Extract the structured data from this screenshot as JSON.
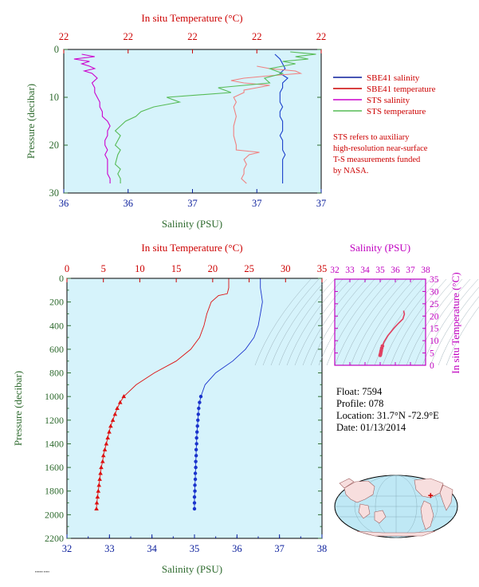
{
  "chart_data": [
    {
      "type": "line",
      "name": "upper-near-surface-profile",
      "top_axis": {
        "label": "In situ Temperature (°C)",
        "ticks": [
          "22",
          "22",
          "22",
          "22",
          "22"
        ],
        "color": "#cc0000"
      },
      "bottom_axis": {
        "label": "Salinity (PSU)",
        "ticks": [
          "36",
          "36",
          "37",
          "37",
          "37"
        ],
        "range": [
          36.0,
          37.0
        ],
        "color": "#0b1f9c"
      },
      "y_axis": {
        "label": "Pressure (decibar)",
        "ticks": [
          "0",
          "10",
          "20",
          "30"
        ],
        "range": [
          0,
          30
        ],
        "inverted": true,
        "color": "#2f6b2f"
      },
      "temp_range": [
        21.5,
        22.5
      ],
      "legend": {
        "placement": "right",
        "items": [
          {
            "label": "SBE41 salinity",
            "color": "#0b1f9c"
          },
          {
            "label": "SBE41 temperature",
            "color": "#cc0000"
          },
          {
            "label": "STS salinity",
            "color": "#cc00cc"
          },
          {
            "label": "STS temperature",
            "color": "#55bb55"
          }
        ]
      },
      "note": [
        "STS refers to auxiliary",
        "high-resolution near-surface",
        "T-S measurements funded",
        "by NASA."
      ],
      "series": [
        {
          "name": "SBE41 salinity",
          "color": "#1a3fcc",
          "style": "line",
          "points": [
            [
              36.82,
              1
            ],
            [
              36.84,
              2
            ],
            [
              36.85,
              3
            ],
            [
              36.86,
              4
            ],
            [
              36.84,
              5
            ],
            [
              36.87,
              6
            ],
            [
              36.85,
              7
            ],
            [
              36.85,
              8
            ],
            [
              36.84,
              9
            ],
            [
              36.84,
              10
            ],
            [
              36.84,
              11
            ],
            [
              36.85,
              12
            ],
            [
              36.84,
              13
            ],
            [
              36.84,
              14
            ],
            [
              36.85,
              15
            ],
            [
              36.85,
              16
            ],
            [
              36.85,
              17
            ],
            [
              36.84,
              18
            ],
            [
              36.85,
              19
            ],
            [
              36.85,
              20
            ],
            [
              36.85,
              21
            ],
            [
              36.86,
              22
            ],
            [
              36.85,
              23
            ],
            [
              36.85,
              24
            ],
            [
              36.85,
              25
            ],
            [
              36.85,
              26
            ],
            [
              36.85,
              27
            ],
            [
              36.85,
              28
            ]
          ]
        },
        {
          "name": "SBE41 temperature",
          "color": "#f08080",
          "style": "line",
          "points": [
            [
              22.25,
              3.5
            ],
            [
              22.3,
              4
            ],
            [
              22.4,
              4.5
            ],
            [
              22.42,
              5
            ],
            [
              22.3,
              5.5
            ],
            [
              22.2,
              6
            ],
            [
              22.15,
              6.5
            ],
            [
              22.2,
              7
            ],
            [
              22.3,
              7.5
            ],
            [
              22.25,
              8
            ],
            [
              22.2,
              8.5
            ],
            [
              22.2,
              9
            ],
            [
              22.18,
              9.5
            ],
            [
              22.16,
              10
            ],
            [
              22.17,
              11
            ],
            [
              22.16,
              12
            ],
            [
              22.17,
              14
            ],
            [
              22.16,
              16
            ],
            [
              22.16,
              18
            ],
            [
              22.17,
              20
            ],
            [
              22.17,
              21
            ],
            [
              22.26,
              21.5
            ],
            [
              22.22,
              22
            ],
            [
              22.2,
              23
            ],
            [
              22.21,
              24
            ],
            [
              22.2,
              25
            ],
            [
              22.2,
              26
            ],
            [
              22.19,
              27
            ],
            [
              22.21,
              28
            ]
          ]
        },
        {
          "name": "STS salinity",
          "color": "#cc00cc",
          "style": "line",
          "points": [
            [
              36.07,
              1
            ],
            [
              36.12,
              1.5
            ],
            [
              36.04,
              2
            ],
            [
              36.1,
              2.5
            ],
            [
              36.07,
              3
            ],
            [
              36.1,
              3.5
            ],
            [
              36.12,
              4
            ],
            [
              36.08,
              4.5
            ],
            [
              36.11,
              5
            ],
            [
              36.13,
              6
            ],
            [
              36.11,
              7
            ],
            [
              36.12,
              8
            ],
            [
              36.12,
              9
            ],
            [
              36.13,
              10
            ],
            [
              36.14,
              11
            ],
            [
              36.14,
              12
            ],
            [
              36.15,
              13
            ],
            [
              36.15,
              14
            ],
            [
              36.17,
              15
            ],
            [
              36.18,
              16
            ],
            [
              36.17,
              17
            ],
            [
              36.17,
              18
            ],
            [
              36.16,
              19
            ],
            [
              36.16,
              20
            ],
            [
              36.17,
              21
            ],
            [
              36.16,
              22
            ],
            [
              36.17,
              23
            ],
            [
              36.17,
              24
            ],
            [
              36.17,
              25
            ],
            [
              36.17,
              26
            ],
            [
              36.18,
              27
            ],
            [
              36.18,
              28
            ]
          ]
        },
        {
          "name": "STS temperature",
          "color": "#55bb55",
          "style": "line",
          "points": [
            [
              22.38,
              0.5
            ],
            [
              22.48,
              1
            ],
            [
              22.4,
              1.5
            ],
            [
              22.45,
              2
            ],
            [
              22.35,
              2.5
            ],
            [
              22.4,
              3
            ],
            [
              22.3,
              4
            ],
            [
              22.35,
              5
            ],
            [
              22.28,
              6
            ],
            [
              22.3,
              7
            ],
            [
              22.1,
              8
            ],
            [
              22.15,
              9
            ],
            [
              21.9,
              10
            ],
            [
              21.95,
              11
            ],
            [
              21.85,
              12
            ],
            [
              21.8,
              13
            ],
            [
              21.78,
              14
            ],
            [
              21.74,
              15
            ],
            [
              21.72,
              16
            ],
            [
              21.7,
              17
            ],
            [
              21.72,
              18
            ],
            [
              21.7,
              20
            ],
            [
              21.72,
              21
            ],
            [
              21.71,
              22
            ],
            [
              21.7,
              24
            ],
            [
              21.72,
              25
            ],
            [
              21.71,
              26
            ],
            [
              21.72,
              27
            ],
            [
              21.72,
              28
            ]
          ]
        }
      ]
    },
    {
      "type": "line",
      "name": "full-depth-profile",
      "top_axis": {
        "label": "In situ Temperature (°C)",
        "ticks": [
          "0",
          "5",
          "10",
          "15",
          "20",
          "25",
          "30",
          "35"
        ],
        "range": [
          0,
          35
        ],
        "color": "#cc0000"
      },
      "bottom_axis": {
        "label": "Salinity (PSU)",
        "ticks": [
          "32",
          "33",
          "34",
          "35",
          "36",
          "37",
          "38"
        ],
        "range": [
          32,
          38
        ],
        "color": "#0b1f9c"
      },
      "y_axis": {
        "label": "Pressure (decibar)",
        "ticks": [
          "0",
          "200",
          "400",
          "600",
          "800",
          "1000",
          "1200",
          "1400",
          "1600",
          "1800",
          "2000",
          "2200"
        ],
        "range": [
          0,
          2200
        ],
        "inverted": true,
        "color": "#2f6b2f"
      },
      "series": [
        {
          "name": "Temperature",
          "color": "#dd1111",
          "marker": "triangle",
          "points": [
            [
              22.2,
              0
            ],
            [
              22.2,
              80
            ],
            [
              22.0,
              130
            ],
            [
              20.8,
              145
            ],
            [
              19.8,
              200
            ],
            [
              19.2,
              300
            ],
            [
              18.8,
              400
            ],
            [
              18.2,
              500
            ],
            [
              17.0,
              600
            ],
            [
              15.0,
              700
            ],
            [
              12.0,
              800
            ],
            [
              9.5,
              900
            ],
            [
              7.8,
              1000
            ],
            [
              7.3,
              1050
            ],
            [
              6.9,
              1100
            ],
            [
              6.6,
              1150
            ],
            [
              6.3,
              1200
            ],
            [
              6.0,
              1250
            ],
            [
              5.8,
              1300
            ],
            [
              5.6,
              1350
            ],
            [
              5.4,
              1400
            ],
            [
              5.2,
              1450
            ],
            [
              5.0,
              1500
            ],
            [
              4.9,
              1550
            ],
            [
              4.7,
              1600
            ],
            [
              4.6,
              1650
            ],
            [
              4.5,
              1700
            ],
            [
              4.4,
              1750
            ],
            [
              4.3,
              1800
            ],
            [
              4.2,
              1850
            ],
            [
              4.1,
              1900
            ],
            [
              4.05,
              1950
            ]
          ]
        },
        {
          "name": "Salinity",
          "color": "#1a33cc",
          "marker": "circle",
          "points": [
            [
              36.55,
              0
            ],
            [
              36.55,
              80
            ],
            [
              36.58,
              150
            ],
            [
              36.6,
              200
            ],
            [
              36.55,
              300
            ],
            [
              36.5,
              400
            ],
            [
              36.4,
              500
            ],
            [
              36.2,
              600
            ],
            [
              35.9,
              700
            ],
            [
              35.5,
              800
            ],
            [
              35.25,
              900
            ],
            [
              35.15,
              1000
            ],
            [
              35.12,
              1050
            ],
            [
              35.1,
              1100
            ],
            [
              35.09,
              1150
            ],
            [
              35.08,
              1200
            ],
            [
              35.07,
              1250
            ],
            [
              35.06,
              1300
            ],
            [
              35.05,
              1350
            ],
            [
              35.05,
              1400
            ],
            [
              35.04,
              1450
            ],
            [
              35.04,
              1500
            ],
            [
              35.03,
              1550
            ],
            [
              35.03,
              1600
            ],
            [
              35.02,
              1650
            ],
            [
              35.02,
              1700
            ],
            [
              35.01,
              1750
            ],
            [
              35.01,
              1800
            ],
            [
              35.0,
              1850
            ],
            [
              35.0,
              1900
            ],
            [
              35.0,
              1950
            ]
          ]
        }
      ]
    },
    {
      "type": "scatter",
      "name": "ts-diagram",
      "x_axis": {
        "label": "Salinity (PSU)",
        "ticks": [
          "32",
          "33",
          "34",
          "35",
          "36",
          "37",
          "38"
        ],
        "range": [
          32,
          38
        ],
        "color": "#cc00cc"
      },
      "y_axis": {
        "label": "In situ Temperature (°C)",
        "ticks": [
          "0",
          "5",
          "10",
          "15",
          "20",
          "25",
          "30",
          "35"
        ],
        "range": [
          0,
          35
        ],
        "color": "#cc00cc"
      },
      "series": [
        {
          "name": "T-S",
          "color": "#e04060",
          "points": [
            [
              36.55,
              22.2
            ],
            [
              36.6,
              20.8
            ],
            [
              36.5,
              18.8
            ],
            [
              36.2,
              17.0
            ],
            [
              35.9,
              15.0
            ],
            [
              35.5,
              12.0
            ],
            [
              35.25,
              9.5
            ],
            [
              35.15,
              7.8
            ],
            [
              35.1,
              6.9
            ],
            [
              35.07,
              6.0
            ],
            [
              35.05,
              5.4
            ],
            [
              35.03,
              4.7
            ],
            [
              35.01,
              4.3
            ],
            [
              35.0,
              4.05
            ]
          ]
        }
      ]
    }
  ],
  "info": {
    "float": "Float:  7594",
    "profile": "Profile:  078",
    "location": "Location:  31.7°N  -72.9°E",
    "date": "Date:  01/13/2014"
  },
  "map": {
    "marker_lat": 31.7,
    "marker_lon": -72.9,
    "marker_color": "#cc0000"
  },
  "colors": {
    "plot_bg": "#d6f3fb",
    "ocean": "#bfe8f5",
    "land": "#f7dede"
  }
}
